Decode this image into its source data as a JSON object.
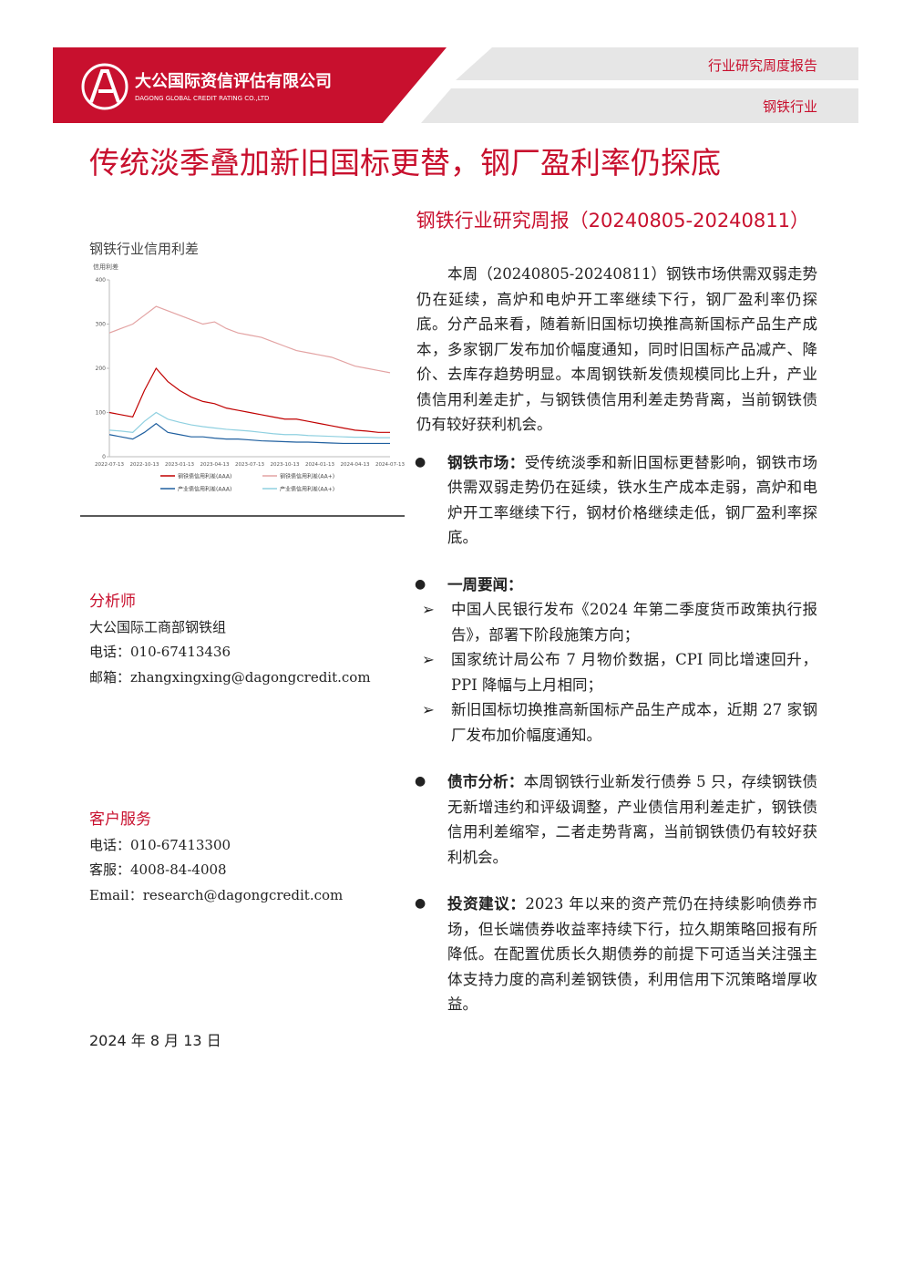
{
  "header": {
    "company": "大公国际资信评估有限公司",
    "company_en": "DAGONG GLOBAL CREDIT RATING CO.,LTD",
    "report_type": "行业研究周度报告",
    "industry": "钢铁行业"
  },
  "title": "传统淡季叠加新旧国标更替，钢厂盈利率仍探底",
  "subtitle": "钢铁行业研究周报（20240805-20240811）",
  "chart_data": {
    "type": "line",
    "title": "钢铁行业信用利差",
    "y_label": "信用利差",
    "x": [
      "2022-07-13",
      "2022-08-13",
      "2022-09-13",
      "2022-10-13",
      "2022-11-13",
      "2022-12-13",
      "2023-01-13",
      "2023-02-13",
      "2023-03-13",
      "2023-04-13",
      "2023-05-13",
      "2023-06-13",
      "2023-07-13",
      "2023-08-13",
      "2023-09-13",
      "2023-10-13",
      "2023-11-13",
      "2023-12-13",
      "2024-01-13",
      "2024-02-13",
      "2024-03-13",
      "2024-04-13",
      "2024-05-13",
      "2024-06-13",
      "2024-07-13"
    ],
    "xticks": [
      "2022-07-13",
      "2022-10-13",
      "2023-01-13",
      "2023-04-13",
      "2023-07-13",
      "2023-10-13",
      "2024-01-13",
      "2024-04-13",
      "2024-07-13"
    ],
    "ylim": [
      0,
      400
    ],
    "yticks": [
      0,
      100,
      200,
      300,
      400
    ],
    "series": [
      {
        "name": "钢铁债信用利差(AAA)",
        "color": "#c00000",
        "values": [
          100,
          95,
          90,
          150,
          200,
          170,
          150,
          135,
          125,
          120,
          110,
          105,
          100,
          95,
          90,
          85,
          85,
          80,
          75,
          70,
          65,
          60,
          58,
          55,
          55
        ]
      },
      {
        "name": "钢铁债信用利差(AA+)",
        "color": "#e3a3a3",
        "values": [
          280,
          290,
          300,
          320,
          340,
          330,
          320,
          310,
          300,
          305,
          290,
          280,
          275,
          270,
          260,
          250,
          240,
          235,
          230,
          225,
          215,
          205,
          200,
          195,
          190
        ]
      },
      {
        "name": "产业债信用利差(AAA)",
        "color": "#1f5f9f",
        "values": [
          50,
          45,
          40,
          55,
          75,
          55,
          50,
          45,
          45,
          42,
          40,
          40,
          38,
          36,
          35,
          34,
          33,
          33,
          32,
          31,
          30,
          30,
          30,
          30,
          30
        ]
      },
      {
        "name": "产业债信用利差(AA+)",
        "color": "#8fd0e0",
        "values": [
          60,
          58,
          55,
          80,
          100,
          85,
          78,
          72,
          68,
          65,
          62,
          60,
          58,
          55,
          52,
          50,
          50,
          48,
          47,
          46,
          45,
          44,
          44,
          43,
          43
        ]
      }
    ]
  },
  "summary": "本周（20240805-20240811）钢铁市场供需双弱走势仍在延续，高炉和电炉开工率继续下行，钢厂盈利率仍探底。分产品来看，随着新旧国标切换推高新国标产品生产成本，多家钢厂发布加价幅度通知，同时旧国标产品减产、降价、去库存趋势明显。本周钢铁新发债规模同比上升，产业债信用利差走扩，与钢铁债信用利差走势背离，当前钢铁债仍有较好获利机会。",
  "bullets": [
    {
      "label": "钢铁市场：",
      "text": "受传统淡季和新旧国标更替影响，钢铁市场供需双弱走势仍在延续，铁水生产成本走弱，高炉和电炉开工率继续下行，钢材价格继续走低，钢厂盈利率探底。"
    },
    {
      "label": "一周要闻：",
      "items": [
        "中国人民银行发布《2024 年第二季度货币政策执行报告》，部署下阶段施策方向；",
        "国家统计局公布 7 月物价数据，CPI 同比增速回升，PPI 降幅与上月相同；",
        "新旧国标切换推高新国标产品生产成本，近期 27 家钢厂发布加价幅度通知。"
      ]
    },
    {
      "label": "债市分析：",
      "text": "本周钢铁行业新发行债券 5 只，存续钢铁债无新增违约和评级调整，产业债信用利差走扩，钢铁债信用利差缩窄，二者走势背离，当前钢铁债仍有较好获利机会。"
    },
    {
      "label": "投资建议：",
      "text": "2023 年以来的资产荒仍在持续影响债券市场，但长端债券收益率持续下行，拉久期策略回报有所降低。在配置优质长久期债券的前提下可适当关注强主体支持力度的高利差钢铁债，利用信用下沉策略增厚收益。"
    }
  ],
  "analyst": {
    "heading": "分析师",
    "org": "大公国际工商部钢铁组",
    "phone": "电话：010-67413436",
    "email": "邮箱：zhangxingxing@dagongcredit.com"
  },
  "service": {
    "heading": "客户服务",
    "phone": "电话：010-67413300",
    "hotline": "客服：4008-84-4008",
    "email": "Email：research@dagongcredit.com"
  },
  "date": "2024 年 8 月 13 日"
}
